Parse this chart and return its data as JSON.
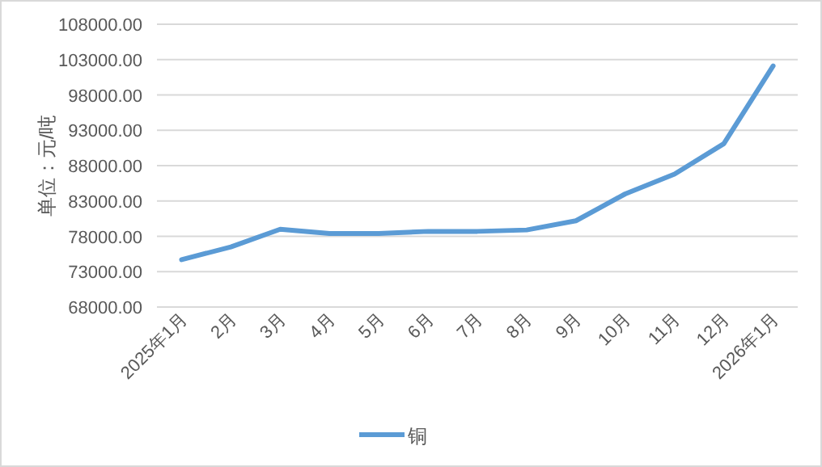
{
  "chart_data": {
    "type": "line",
    "ylabel": "单位：元/吨",
    "categories": [
      "2025年1月",
      "2月",
      "3月",
      "4月",
      "5月",
      "6月",
      "7月",
      "8月",
      "9月",
      "10月",
      "11月",
      "12月",
      "2026年1月"
    ],
    "series": [
      {
        "name": "铜",
        "color": "#5b9bd5",
        "values": [
          74700,
          76500,
          79000,
          78400,
          78400,
          78700,
          78700,
          78900,
          80200,
          84000,
          86800,
          91100,
          102100
        ]
      }
    ],
    "ylim": [
      68000,
      108000
    ],
    "yticks": [
      {
        "value": 68000,
        "label": "68000.00"
      },
      {
        "value": 73000,
        "label": "73000.00"
      },
      {
        "value": 78000,
        "label": "78000.00"
      },
      {
        "value": 83000,
        "label": "83000.00"
      },
      {
        "value": 88000,
        "label": "88000.00"
      },
      {
        "value": 93000,
        "label": "93000.00"
      },
      {
        "value": 98000,
        "label": "98000.00"
      },
      {
        "value": 103000,
        "label": "103000.00"
      },
      {
        "value": 108000,
        "label": "108000.00"
      }
    ],
    "grid": "y",
    "legend": "bottom",
    "marker": "none",
    "line_style": "solid"
  }
}
